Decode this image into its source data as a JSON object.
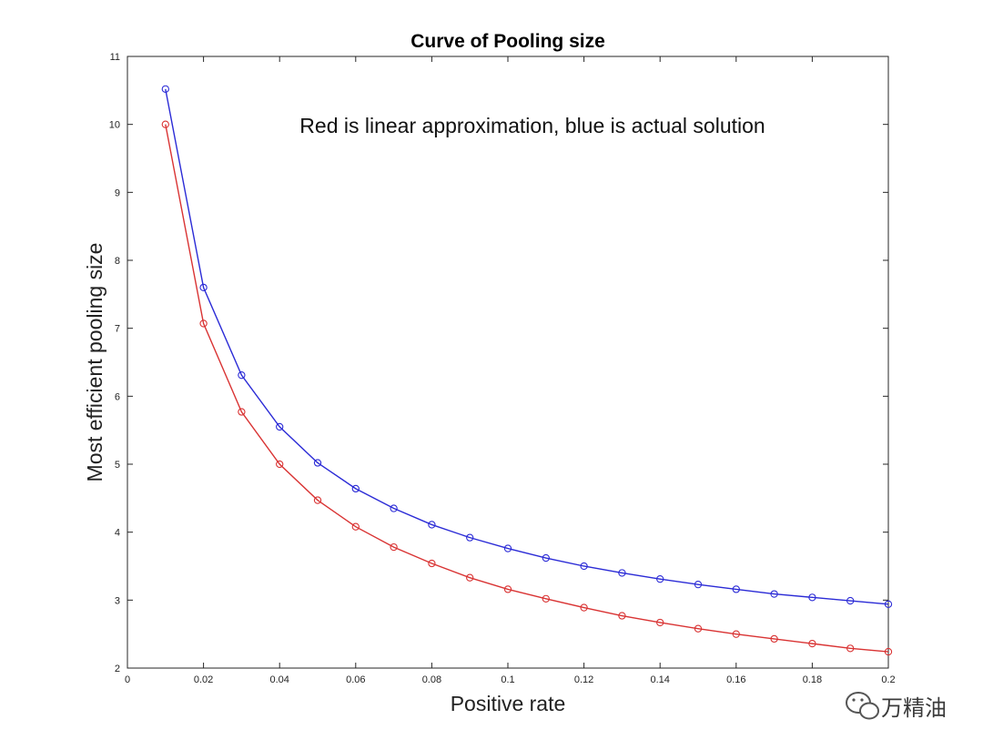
{
  "chart_data": {
    "type": "line",
    "title": "Curve of Pooling size",
    "xlabel": "Positive rate",
    "ylabel": "Most efficient pooling size",
    "xlim": [
      0,
      0.2
    ],
    "ylim": [
      2,
      11
    ],
    "xticks": [
      0,
      0.02,
      0.04,
      0.06,
      0.08,
      0.1,
      0.12,
      0.14,
      0.16,
      0.18,
      0.2
    ],
    "xtick_labels": [
      "0",
      "0.02",
      "0.04",
      "0.06",
      "0.08",
      "0.1",
      "0.12",
      "0.14",
      "0.16",
      "0.18",
      "0.2"
    ],
    "yticks": [
      2,
      3,
      4,
      5,
      6,
      7,
      8,
      9,
      10,
      11
    ],
    "ytick_labels": [
      "2",
      "3",
      "4",
      "5",
      "6",
      "7",
      "8",
      "9",
      "10",
      "11"
    ],
    "grid": false,
    "marker": "circle",
    "x": [
      0.01,
      0.02,
      0.03,
      0.04,
      0.05,
      0.06,
      0.07,
      0.08,
      0.09,
      0.1,
      0.11,
      0.12,
      0.13,
      0.14,
      0.15,
      0.16,
      0.17,
      0.18,
      0.19,
      0.2
    ],
    "series": [
      {
        "name": "actual solution",
        "color": "#2b2bd6",
        "values": [
          10.52,
          7.6,
          6.31,
          5.55,
          5.02,
          4.64,
          4.35,
          4.11,
          3.92,
          3.76,
          3.62,
          3.5,
          3.4,
          3.31,
          3.23,
          3.16,
          3.09,
          3.04,
          2.99,
          2.94
        ]
      },
      {
        "name": "linear approximation",
        "color": "#d93333",
        "values": [
          10.0,
          7.07,
          5.77,
          5.0,
          4.47,
          4.08,
          3.78,
          3.54,
          3.33,
          3.16,
          3.02,
          2.89,
          2.77,
          2.67,
          2.58,
          2.5,
          2.43,
          2.36,
          2.29,
          2.24
        ]
      }
    ],
    "annotation": "Red is linear approximation, blue is actual solution"
  },
  "watermark": {
    "text": "万精油",
    "icon": "wechat-icon"
  }
}
